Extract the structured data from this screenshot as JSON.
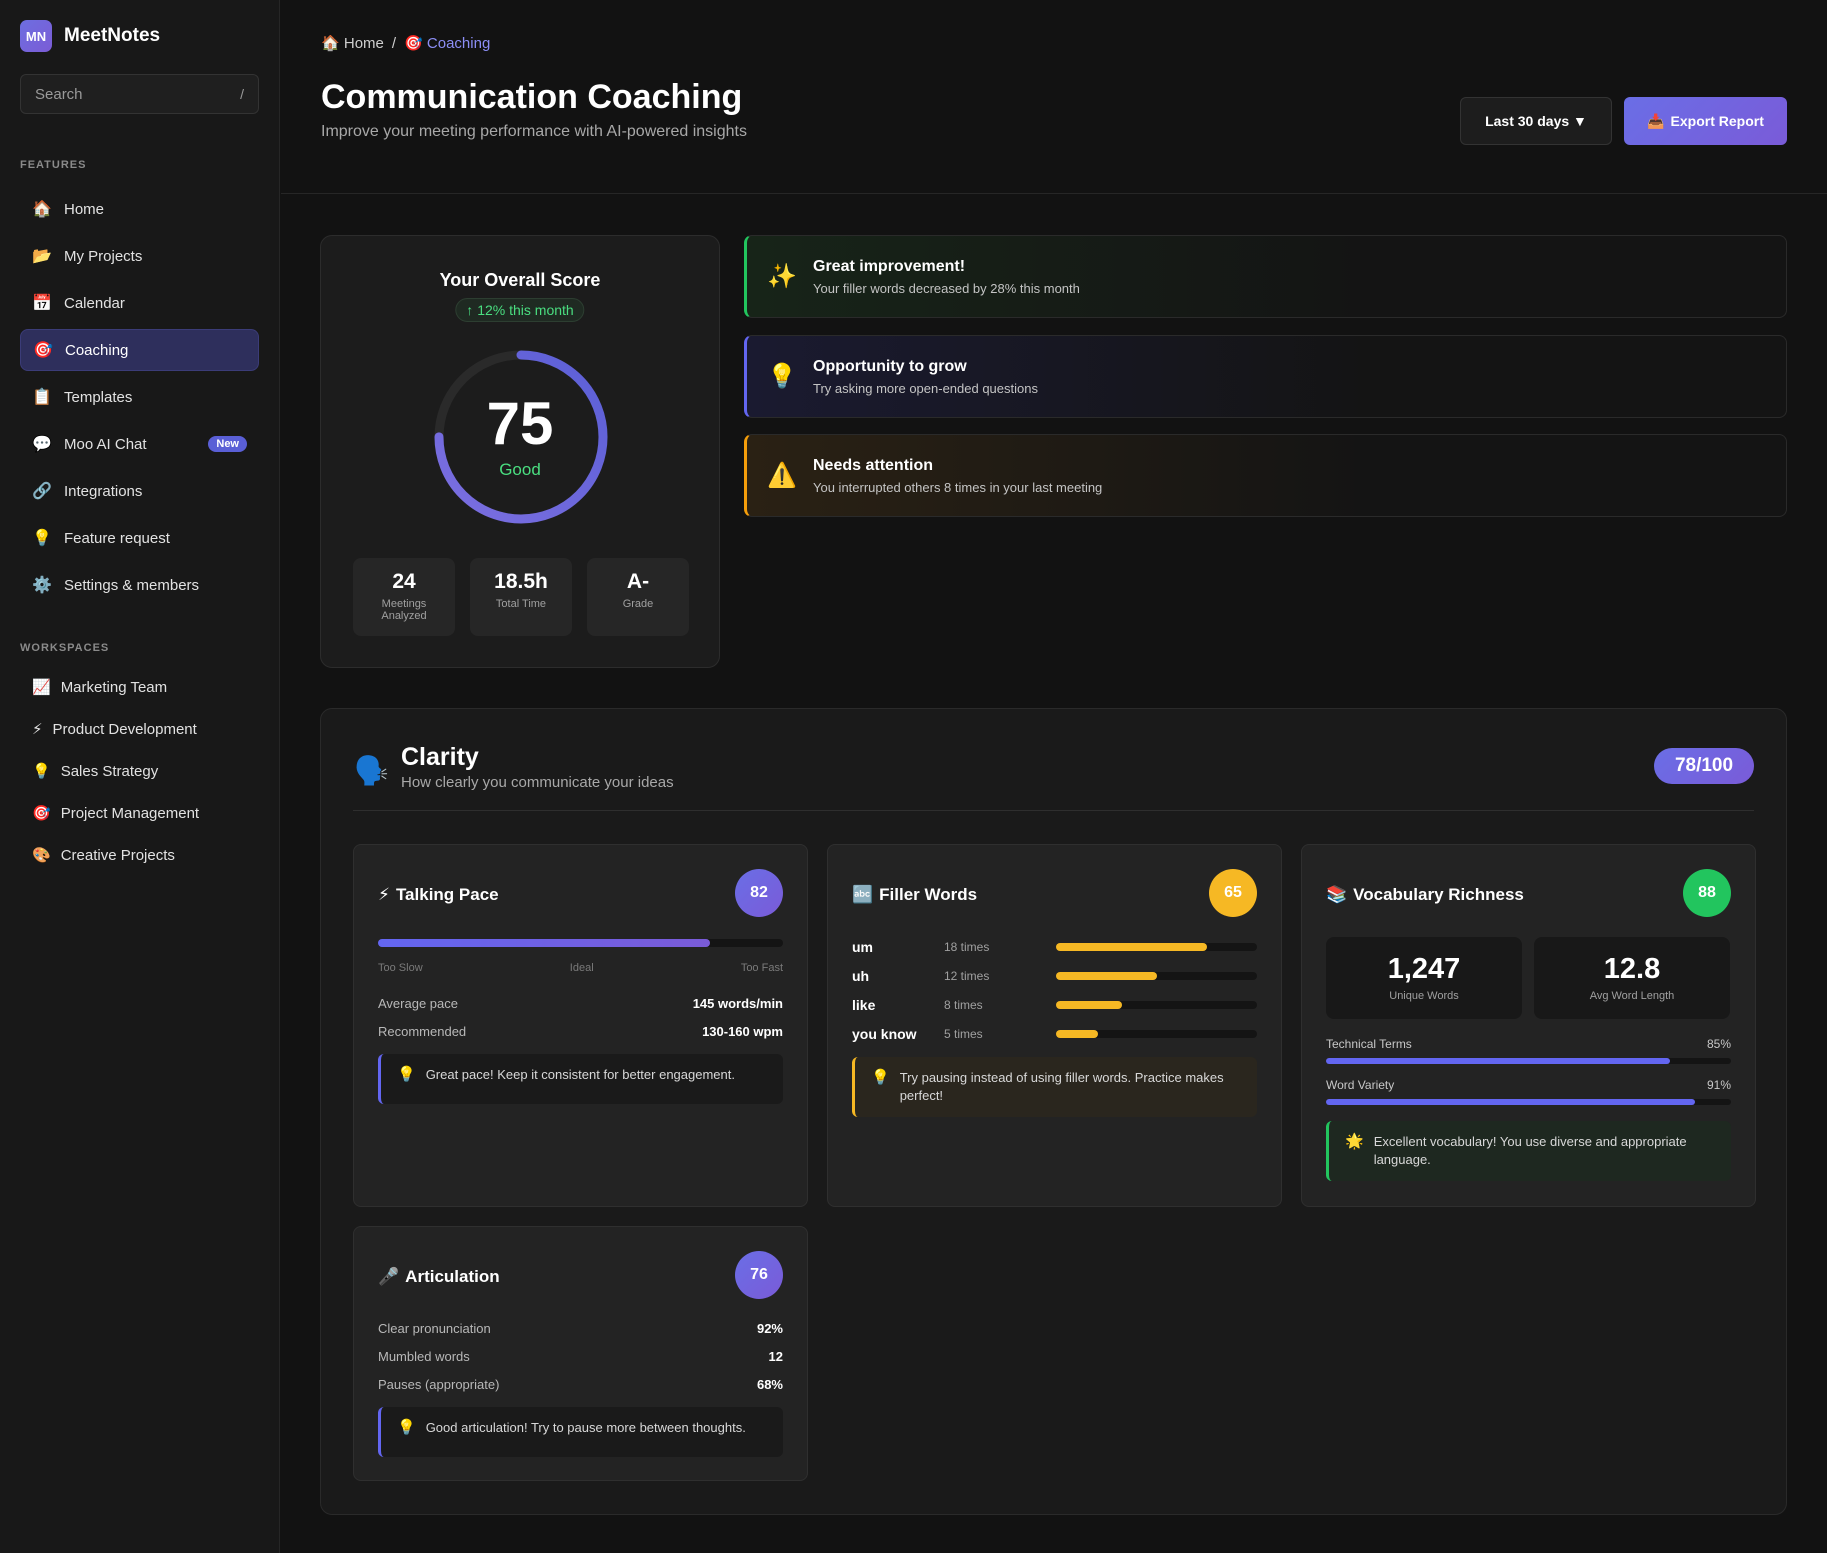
{
  "brand": {
    "logo": "MN",
    "name": "MeetNotes"
  },
  "search": {
    "placeholder": "Search",
    "shortcut": "/"
  },
  "sidebar": {
    "features_label": "FEATURES",
    "items": [
      {
        "icon": "🏠",
        "label": "Home"
      },
      {
        "icon": "📂",
        "label": "My Projects"
      },
      {
        "icon": "📅",
        "label": "Calendar"
      },
      {
        "icon": "🎯",
        "label": "Coaching",
        "active": true
      },
      {
        "icon": "📋",
        "label": "Templates"
      },
      {
        "icon": "💬",
        "label": "Moo AI Chat",
        "badge": "New"
      },
      {
        "icon": "🔗",
        "label": "Integrations"
      },
      {
        "icon": "💡",
        "label": "Feature request"
      },
      {
        "icon": "⚙️",
        "label": "Settings & members"
      }
    ],
    "workspaces_label": "WORKSPACES",
    "workspaces": [
      {
        "icon": "📈",
        "label": "Marketing Team"
      },
      {
        "icon": "⚡",
        "label": "Product Development"
      },
      {
        "icon": "💡",
        "label": "Sales Strategy"
      },
      {
        "icon": "🎯",
        "label": "Project Management"
      },
      {
        "icon": "🎨",
        "label": "Creative Projects"
      }
    ]
  },
  "header": {
    "breadcrumb": {
      "home_icon": "🏠",
      "home": "Home",
      "sep": "/",
      "current_icon": "🎯",
      "current": "Coaching"
    },
    "title": "Communication Coaching",
    "subtitle": "Improve your meeting performance with AI-powered insights",
    "range_label": "Last 30 days ▼",
    "export_icon": "📥",
    "export_label": "Export Report"
  },
  "overall": {
    "title": "Your Overall Score",
    "trend": "↑ 12% this month",
    "score": "75",
    "score_fraction": 0.75,
    "rating": "Good",
    "stats": [
      {
        "value": "24",
        "label": "Meetings Analyzed"
      },
      {
        "value": "18.5h",
        "label": "Total Time"
      },
      {
        "value": "A-",
        "label": "Grade"
      }
    ]
  },
  "insights": [
    {
      "icon": "✨",
      "title": "Great improvement!",
      "desc": "Your filler words decreased by 28% this month"
    },
    {
      "icon": "💡",
      "title": "Opportunity to grow",
      "desc": "Try asking more open-ended questions"
    },
    {
      "icon": "⚠️",
      "title": "Needs attention",
      "desc": "You interrupted others 8 times in your last meeting"
    }
  ],
  "clarity": {
    "icon": "🗣️",
    "title": "Clarity",
    "subtitle": "How clearly you communicate your ideas",
    "score": "78/100",
    "talking_pace": {
      "icon": "⚡",
      "title": "Talking Pace",
      "score": "82",
      "pace_fraction": 0.82,
      "scale": [
        "Too Slow",
        "Ideal",
        "Too Fast"
      ],
      "rows": [
        {
          "label": "Average pace",
          "value": "145 words/min"
        },
        {
          "label": "Recommended",
          "value": "130-160 wpm"
        }
      ],
      "tip_icon": "💡",
      "tip": "Great pace! Keep it consistent for better engagement."
    },
    "filler_words": {
      "icon": "🔤",
      "title": "Filler Words",
      "score": "65",
      "words": [
        {
          "word": "um",
          "count": "18 times",
          "fraction": 0.75
        },
        {
          "word": "uh",
          "count": "12 times",
          "fraction": 0.5
        },
        {
          "word": "like",
          "count": "8 times",
          "fraction": 0.33
        },
        {
          "word": "you know",
          "count": "5 times",
          "fraction": 0.21
        }
      ],
      "tip_icon": "💡",
      "tip": "Try pausing instead of using filler words. Practice makes perfect!"
    },
    "vocabulary": {
      "icon": "📚",
      "title": "Vocabulary Richness",
      "score": "88",
      "boxes": [
        {
          "value": "1,247",
          "label": "Unique Words"
        },
        {
          "value": "12.8",
          "label": "Avg Word Length"
        }
      ],
      "bars": [
        {
          "label": "Technical Terms",
          "value": "85%",
          "fraction": 0.85
        },
        {
          "label": "Word Variety",
          "value": "91%",
          "fraction": 0.91
        }
      ],
      "tip_icon": "🌟",
      "tip": "Excellent vocabulary! You use diverse and appropriate language."
    },
    "articulation": {
      "icon": "🎤",
      "title": "Articulation",
      "score": "76",
      "rows": [
        {
          "label": "Clear pronunciation",
          "value": "92%"
        },
        {
          "label": "Mumbled words",
          "value": "12"
        },
        {
          "label": "Pauses (appropriate)",
          "value": "68%"
        }
      ],
      "tip_icon": "💡",
      "tip": "Good articulation! Try to pause more between thoughts."
    }
  }
}
